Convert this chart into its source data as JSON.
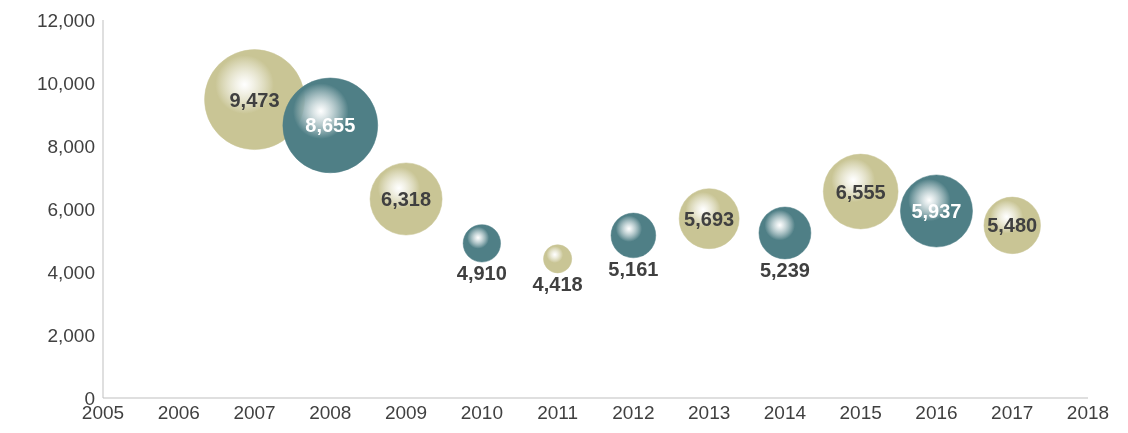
{
  "chart_data": {
    "type": "bubble",
    "x": [
      2007,
      2008,
      2009,
      2010,
      2011,
      2012,
      2013,
      2014,
      2015,
      2016,
      2017
    ],
    "values": [
      9473,
      8655,
      6318,
      4910,
      4418,
      5161,
      5693,
      5239,
      6555,
      5937,
      5480
    ],
    "value_labels": [
      "9,473",
      "8,655",
      "6,318",
      "4,910",
      "4,418",
      "5,161",
      "5,693",
      "5,239",
      "6,555",
      "5,937",
      "5,480"
    ],
    "sizes": [
      1.0,
      0.9,
      0.52,
      0.14,
      0.08,
      0.2,
      0.36,
      0.27,
      0.56,
      0.52,
      0.32
    ],
    "colors": [
      "#c9c595",
      "#4f7f86",
      "#c9c595",
      "#4f7f86",
      "#c9c595",
      "#4f7f86",
      "#c9c595",
      "#4f7f86",
      "#c9c595",
      "#4f7f86",
      "#c9c595"
    ],
    "xlim": [
      2005,
      2018
    ],
    "xticks": [
      2005,
      2006,
      2007,
      2008,
      2009,
      2010,
      2011,
      2012,
      2013,
      2014,
      2015,
      2016,
      2017,
      2018
    ],
    "ylim": [
      0,
      12000
    ],
    "yticks": [
      0,
      {
        "value": 2000,
        "label": "2,000"
      },
      {
        "value": 4000,
        "label": "4,000"
      },
      {
        "value": 6000,
        "label": "6,000"
      },
      {
        "value": 8000,
        "label": "8,000"
      },
      {
        "value": 10000,
        "label": "10,000"
      },
      {
        "value": 12000,
        "label": "12,000"
      }
    ],
    "grid": false
  }
}
